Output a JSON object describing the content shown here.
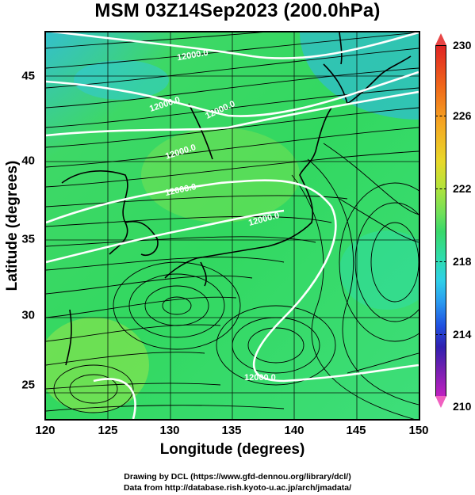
{
  "title": "MSM 03Z14Sep2023 (200.0hPa)",
  "axes": {
    "xlabel": "Longitude (degrees)",
    "ylabel": "Latitude  (degrees)",
    "xticks": [
      "120",
      "125",
      "130",
      "135",
      "140",
      "145",
      "150"
    ],
    "yticks": [
      "25",
      "30",
      "35",
      "40",
      "45"
    ]
  },
  "colorbar": {
    "ticks": [
      "230",
      "226",
      "222",
      "218",
      "214",
      "210"
    ],
    "colors": [
      "#e02424",
      "#f5a623",
      "#e8d82a",
      "#6ee05a",
      "#2fd0e8",
      "#2050e0",
      "#c020c0"
    ]
  },
  "contour_labels": [
    "12000.0",
    "12000.0",
    "12000.0",
    "12000.0",
    "12000.0",
    "12000.0",
    "12000.0"
  ],
  "credits": {
    "line1": "Drawing by DCL (https://www.gfd-dennou.org/library/dcl/)",
    "line2": "Data from http://database.rish.kyoto-u.ac.jp/arch/jmadata/"
  }
}
